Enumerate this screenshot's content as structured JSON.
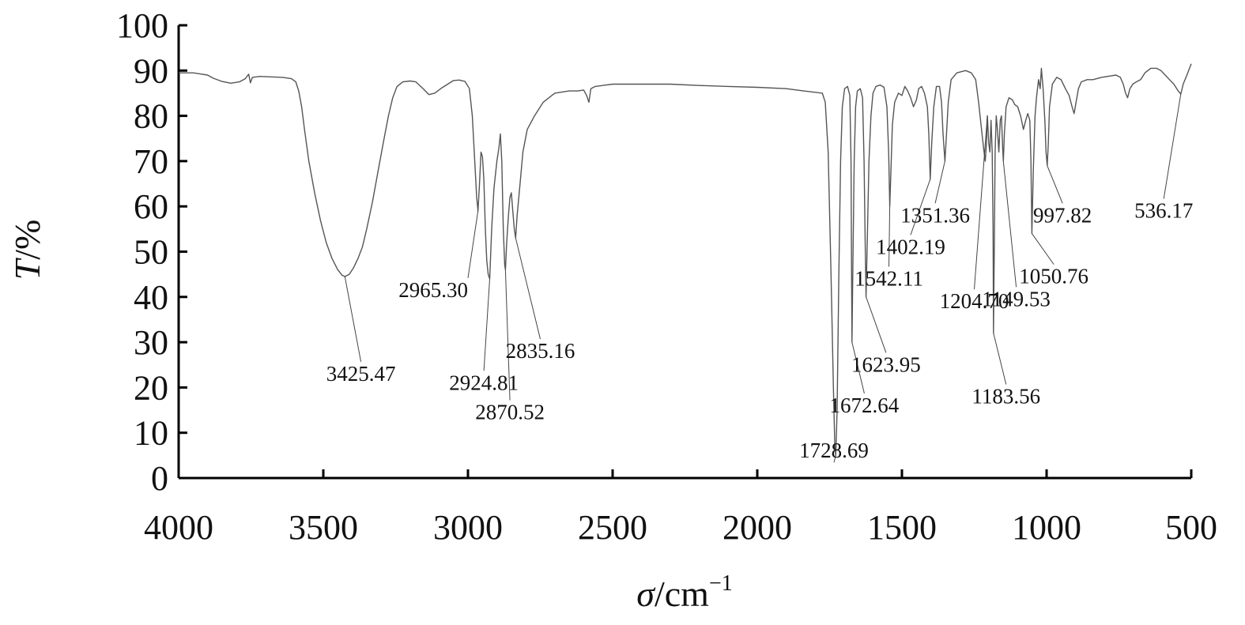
{
  "chart_data": {
    "type": "line",
    "xlabel": {
      "symbol": "σ",
      "unit": "/cm",
      "exp": "−1"
    },
    "ylabel": {
      "symbol": "T",
      "unit": "/%"
    },
    "xlim": [
      4000,
      500
    ],
    "ylim": [
      0,
      100
    ],
    "x_ticks": [
      4000,
      3500,
      3000,
      2500,
      2000,
      1500,
      1000,
      500
    ],
    "y_ticks": [
      0,
      10,
      20,
      30,
      40,
      50,
      60,
      70,
      80,
      90,
      100
    ],
    "grid": false,
    "line_color": "#555555",
    "series": [
      {
        "points": [
          [
            4000,
            89.5
          ],
          [
            3950,
            89.5
          ],
          [
            3900,
            89
          ],
          [
            3880,
            88.3
          ],
          [
            3850,
            87.6
          ],
          [
            3820,
            87.2
          ],
          [
            3790,
            87.5
          ],
          [
            3770,
            88.2
          ],
          [
            3758,
            89.2
          ],
          [
            3752,
            87.3
          ],
          [
            3745,
            88.5
          ],
          [
            3720,
            88.7
          ],
          [
            3680,
            88.6
          ],
          [
            3640,
            88.5
          ],
          [
            3610,
            88.2
          ],
          [
            3595,
            87.5
          ],
          [
            3585,
            85.5
          ],
          [
            3575,
            82
          ],
          [
            3565,
            77
          ],
          [
            3550,
            70
          ],
          [
            3530,
            63
          ],
          [
            3510,
            57
          ],
          [
            3490,
            52
          ],
          [
            3470,
            48.5
          ],
          [
            3450,
            46
          ],
          [
            3435,
            44.8
          ],
          [
            3425.47,
            44.5
          ],
          [
            3410,
            45
          ],
          [
            3395,
            46.5
          ],
          [
            3380,
            48.5
          ],
          [
            3365,
            51
          ],
          [
            3350,
            55
          ],
          [
            3330,
            61
          ],
          [
            3310,
            68
          ],
          [
            3290,
            75
          ],
          [
            3275,
            80
          ],
          [
            3260,
            84
          ],
          [
            3245,
            86.5
          ],
          [
            3225,
            87.5
          ],
          [
            3200,
            87.7
          ],
          [
            3180,
            87.5
          ],
          [
            3155,
            86
          ],
          [
            3135,
            84.7
          ],
          [
            3115,
            85
          ],
          [
            3090,
            86.2
          ],
          [
            3070,
            87
          ],
          [
            3050,
            87.8
          ],
          [
            3030,
            87.9
          ],
          [
            3010,
            87.6
          ],
          [
            2995,
            86
          ],
          [
            2985,
            80
          ],
          [
            2975,
            68
          ],
          [
            2970,
            62
          ],
          [
            2965.3,
            59
          ],
          [
            2960,
            65
          ],
          [
            2955,
            72
          ],
          [
            2950,
            71
          ],
          [
            2945,
            66
          ],
          [
            2940,
            55
          ],
          [
            2935,
            48
          ],
          [
            2930,
            45
          ],
          [
            2924.81,
            44
          ],
          [
            2918,
            55
          ],
          [
            2910,
            64
          ],
          [
            2900,
            70
          ],
          [
            2893,
            73
          ],
          [
            2888,
            76
          ],
          [
            2883,
            70
          ],
          [
            2878,
            55
          ],
          [
            2873,
            47
          ],
          [
            2870.52,
            46
          ],
          [
            2866,
            52
          ],
          [
            2860,
            58
          ],
          [
            2855,
            62
          ],
          [
            2850,
            63
          ],
          [
            2845,
            59
          ],
          [
            2840,
            55
          ],
          [
            2835.16,
            53
          ],
          [
            2830,
            58
          ],
          [
            2820,
            65
          ],
          [
            2810,
            72
          ],
          [
            2795,
            77
          ],
          [
            2770,
            80
          ],
          [
            2740,
            83
          ],
          [
            2700,
            85
          ],
          [
            2650,
            85.5
          ],
          [
            2620,
            85.5
          ],
          [
            2600,
            85.7
          ],
          [
            2590,
            84.5
          ],
          [
            2582,
            83
          ],
          [
            2575,
            86
          ],
          [
            2560,
            86.5
          ],
          [
            2500,
            87
          ],
          [
            2400,
            87
          ],
          [
            2300,
            87
          ],
          [
            2200,
            86.7
          ],
          [
            2100,
            86.5
          ],
          [
            2000,
            86.3
          ],
          [
            1900,
            86
          ],
          [
            1840,
            85.5
          ],
          [
            1800,
            85.2
          ],
          [
            1775,
            85
          ],
          [
            1765,
            83
          ],
          [
            1755,
            72
          ],
          [
            1745,
            45
          ],
          [
            1737,
            20
          ],
          [
            1732,
            7
          ],
          [
            1728.69,
            5
          ],
          [
            1724,
            15
          ],
          [
            1718,
            45
          ],
          [
            1712,
            70
          ],
          [
            1706,
            82
          ],
          [
            1698,
            86
          ],
          [
            1688,
            86.5
          ],
          [
            1680,
            84.5
          ],
          [
            1676,
            70
          ],
          [
            1674,
            45
          ],
          [
            1672.64,
            30
          ],
          [
            1670,
            45
          ],
          [
            1665,
            70
          ],
          [
            1660,
            82
          ],
          [
            1654,
            85.5
          ],
          [
            1644,
            86
          ],
          [
            1636,
            84
          ],
          [
            1631,
            70
          ],
          [
            1627,
            52
          ],
          [
            1623.95,
            40
          ],
          [
            1620,
            52
          ],
          [
            1614,
            70
          ],
          [
            1607,
            80
          ],
          [
            1600,
            85
          ],
          [
            1590,
            86.5
          ],
          [
            1575,
            86.8
          ],
          [
            1562,
            86.3
          ],
          [
            1552,
            82
          ],
          [
            1546,
            72
          ],
          [
            1542.11,
            60
          ],
          [
            1538,
            68
          ],
          [
            1533,
            78
          ],
          [
            1525,
            83
          ],
          [
            1512,
            85
          ],
          [
            1500,
            84.5
          ],
          [
            1490,
            86.5
          ],
          [
            1480,
            85.5
          ],
          [
            1470,
            84
          ],
          [
            1460,
            82
          ],
          [
            1450,
            83.5
          ],
          [
            1442,
            86
          ],
          [
            1432,
            86.5
          ],
          [
            1422,
            85
          ],
          [
            1412,
            82
          ],
          [
            1407,
            76
          ],
          [
            1402.19,
            66
          ],
          [
            1397,
            74
          ],
          [
            1390,
            82
          ],
          [
            1381,
            86.5
          ],
          [
            1370,
            86.5
          ],
          [
            1363,
            83
          ],
          [
            1358,
            76
          ],
          [
            1351.36,
            70
          ],
          [
            1346,
            76
          ],
          [
            1340,
            83
          ],
          [
            1330,
            88
          ],
          [
            1310,
            89.5
          ],
          [
            1280,
            90
          ],
          [
            1260,
            89.5
          ],
          [
            1245,
            88
          ],
          [
            1235,
            83
          ],
          [
            1225,
            77
          ],
          [
            1218,
            73
          ],
          [
            1212,
            70
          ],
          [
            1208,
            74
          ],
          [
            1204.7,
            80
          ],
          [
            1200,
            74
          ],
          [
            1196,
            72
          ],
          [
            1192,
            79
          ],
          [
            1188,
            72
          ],
          [
            1185,
            55
          ],
          [
            1183.56,
            32
          ],
          [
            1181,
            50
          ],
          [
            1178,
            72
          ],
          [
            1174,
            80
          ],
          [
            1170,
            77
          ],
          [
            1165,
            72
          ],
          [
            1160,
            79
          ],
          [
            1156,
            80
          ],
          [
            1152,
            73
          ],
          [
            1149.53,
            70
          ],
          [
            1146,
            76
          ],
          [
            1140,
            82
          ],
          [
            1130,
            84
          ],
          [
            1118,
            83.5
          ],
          [
            1110,
            82.5
          ],
          [
            1100,
            82
          ],
          [
            1090,
            80
          ],
          [
            1080,
            77
          ],
          [
            1072,
            79
          ],
          [
            1065,
            80.5
          ],
          [
            1058,
            79
          ],
          [
            1054,
            70
          ],
          [
            1050.76,
            54
          ],
          [
            1046,
            68
          ],
          [
            1040,
            80
          ],
          [
            1035,
            84
          ],
          [
            1028,
            88
          ],
          [
            1022,
            86
          ],
          [
            1018,
            90.5
          ],
          [
            1012,
            86
          ],
          [
            1006,
            79
          ],
          [
            1002,
            72
          ],
          [
            997.82,
            69
          ],
          [
            994,
            74
          ],
          [
            990,
            82
          ],
          [
            980,
            87
          ],
          [
            965,
            88.5
          ],
          [
            950,
            88
          ],
          [
            935,
            86
          ],
          [
            922,
            84.5
          ],
          [
            912,
            82
          ],
          [
            905,
            80.5
          ],
          [
            898,
            83
          ],
          [
            890,
            86
          ],
          [
            880,
            87.5
          ],
          [
            860,
            88
          ],
          [
            840,
            88
          ],
          [
            810,
            88.5
          ],
          [
            780,
            88.8
          ],
          [
            760,
            89
          ],
          [
            745,
            88.5
          ],
          [
            735,
            87
          ],
          [
            727,
            85
          ],
          [
            720,
            84
          ],
          [
            712,
            86
          ],
          [
            702,
            87
          ],
          [
            690,
            87.5
          ],
          [
            675,
            88
          ],
          [
            660,
            89.5
          ],
          [
            640,
            90.5
          ],
          [
            620,
            90.5
          ],
          [
            605,
            90
          ],
          [
            590,
            89
          ],
          [
            575,
            88
          ],
          [
            560,
            87
          ],
          [
            545,
            85.5
          ],
          [
            536.17,
            84.8
          ],
          [
            528,
            87
          ],
          [
            515,
            89
          ],
          [
            500,
            91.5
          ]
        ]
      }
    ],
    "annotations": [
      {
        "text": "3425.47",
        "x": 3425.47,
        "y": 44.5,
        "tx": 3370,
        "ty": 21.5,
        "anchor": "middle"
      },
      {
        "text": "2965.30",
        "x": 2965.3,
        "y": 59,
        "tx": 3000,
        "ty": 40,
        "anchor": "end"
      },
      {
        "text": "2924.81",
        "x": 2924.81,
        "y": 44,
        "tx": 2945,
        "ty": 19.5,
        "anchor": "middle"
      },
      {
        "text": "2870.52",
        "x": 2870.52,
        "y": 46,
        "tx": 2855,
        "ty": 13,
        "anchor": "middle"
      },
      {
        "text": "2835.16",
        "x": 2835.16,
        "y": 53,
        "tx": 2750,
        "ty": 26.5,
        "anchor": "middle"
      },
      {
        "text": "1728.69",
        "x": 1728.69,
        "y": 5,
        "tx": 1735,
        "ty": 4.5,
        "anchor": "middle"
      },
      {
        "text": "1672.64",
        "x": 1672.64,
        "y": 30,
        "tx": 1630,
        "ty": 14.5,
        "anchor": "middle"
      },
      {
        "text": "1623.95",
        "x": 1623.95,
        "y": 40,
        "tx": 1555,
        "ty": 23.5,
        "anchor": "middle"
      },
      {
        "text": "1542.11",
        "x": 1542.11,
        "y": 60,
        "tx": 1545,
        "ty": 42.5,
        "anchor": "middle"
      },
      {
        "text": "1402.19",
        "x": 1402.19,
        "y": 66,
        "tx": 1470,
        "ty": 49.5,
        "anchor": "middle"
      },
      {
        "text": "1351.36",
        "x": 1351.36,
        "y": 70,
        "tx": 1385,
        "ty": 56.5,
        "anchor": "middle"
      },
      {
        "text": "1204.70",
        "x": 1204.7,
        "y": 80,
        "tx": 1250,
        "ty": 37.5,
        "anchor": "middle"
      },
      {
        "text": "1183.56",
        "x": 1183.56,
        "y": 32,
        "tx": 1140,
        "ty": 16.5,
        "anchor": "middle"
      },
      {
        "text": "1149.53",
        "x": 1149.53,
        "y": 70,
        "tx": 1105,
        "ty": 38,
        "anchor": "middle"
      },
      {
        "text": "1050.76",
        "x": 1050.76,
        "y": 54,
        "tx": 975,
        "ty": 43,
        "anchor": "middle"
      },
      {
        "text": "997.82",
        "x": 997.82,
        "y": 69,
        "tx": 945,
        "ty": 56.5,
        "anchor": "middle"
      },
      {
        "text": "536.17",
        "x": 536.17,
        "y": 84.8,
        "tx": 595,
        "ty": 57.5,
        "anchor": "middle"
      }
    ]
  }
}
